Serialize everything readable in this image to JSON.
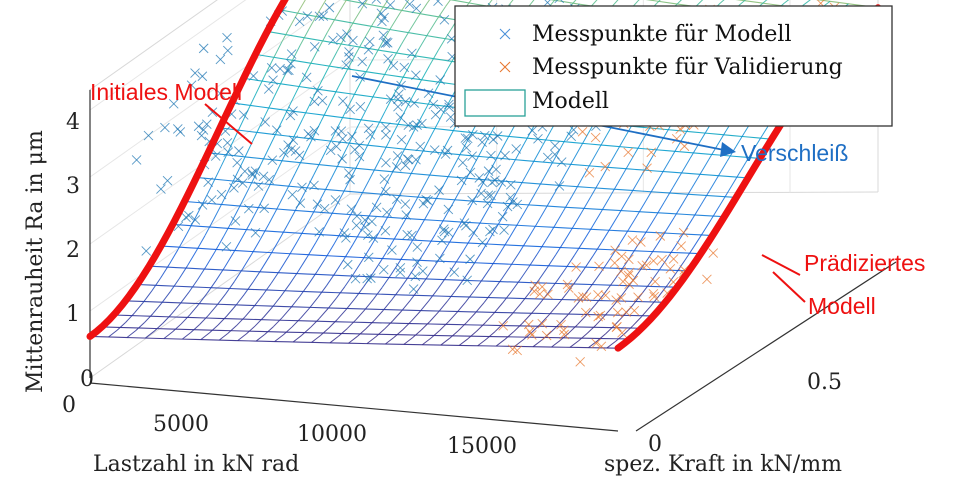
{
  "chart_data": {
    "type": "surface3d-scatter",
    "xlabel": "Lastzahl in kN rad",
    "ylabel": "spez. Kraft in kN/mm",
    "zlabel": "Mittenrauheit Ra in μm",
    "xticks": [
      "0",
      "5000",
      "10000",
      "15000"
    ],
    "yticks": [
      "0",
      "0.5"
    ],
    "zticks": [
      "0",
      "1",
      "2",
      "3",
      "4"
    ],
    "xlim": [
      0,
      18000
    ],
    "ylim": [
      0,
      1
    ],
    "zlim": [
      0,
      4.3
    ],
    "grid": true,
    "legend_position": "top-right",
    "legend": [
      {
        "label": "Messpunkte für Modell",
        "color": "#4a90d9",
        "marker": "x"
      },
      {
        "label": "Messpunkte für Validierung",
        "color": "#e8772e",
        "marker": "x"
      },
      {
        "label": "Modell",
        "color": "#2aa198",
        "marker": "patch"
      }
    ],
    "surface": {
      "name": "Modell",
      "ra_at_zero_force": 0.62,
      "ra_peak": 4.1,
      "ra_at_max_wear": 2.75,
      "colormap": "parula"
    },
    "series": [
      {
        "name": "Messpunkte für Modell",
        "color": "#1f77b4",
        "clusters": [
          {
            "x": [
              0,
              4000
            ],
            "y": [
              0.15,
              1.0
            ],
            "z": [
              1.2,
              4.0
            ],
            "n": 150
          },
          {
            "x": [
              6000,
              11000
            ],
            "y": [
              0.15,
              0.9
            ],
            "z": [
              1.2,
              3.5
            ],
            "n": 170
          },
          {
            "x": [
              6000,
              11000
            ],
            "y": [
              0.2,
              0.6
            ],
            "z": [
              0.5,
              1.4
            ],
            "n": 40
          },
          {
            "x": [
              5000,
              9000
            ],
            "y": [
              0.8,
              1.0
            ],
            "z": [
              3.0,
              3.9
            ],
            "n": 40
          }
        ]
      },
      {
        "name": "Messpunkte für Validierung",
        "color": "#e8772e",
        "clusters": [
          {
            "x": [
              13500,
              17500
            ],
            "y": [
              0.3,
              0.9
            ],
            "z": [
              2.0,
              3.3
            ],
            "n": 80
          },
          {
            "x": [
              14000,
              17500
            ],
            "y": [
              0.0,
              0.45
            ],
            "z": [
              0.1,
              1.2
            ],
            "n": 70
          }
        ]
      }
    ],
    "annotations": [
      {
        "text": "Initiales Modell",
        "color": "#ee1111"
      },
      {
        "text": "Verschleiß",
        "color": "#1f6fc4"
      },
      {
        "text": "Prädiziertes",
        "color": "#ee1111"
      },
      {
        "text": "Modell",
        "color": "#ee1111"
      }
    ]
  }
}
